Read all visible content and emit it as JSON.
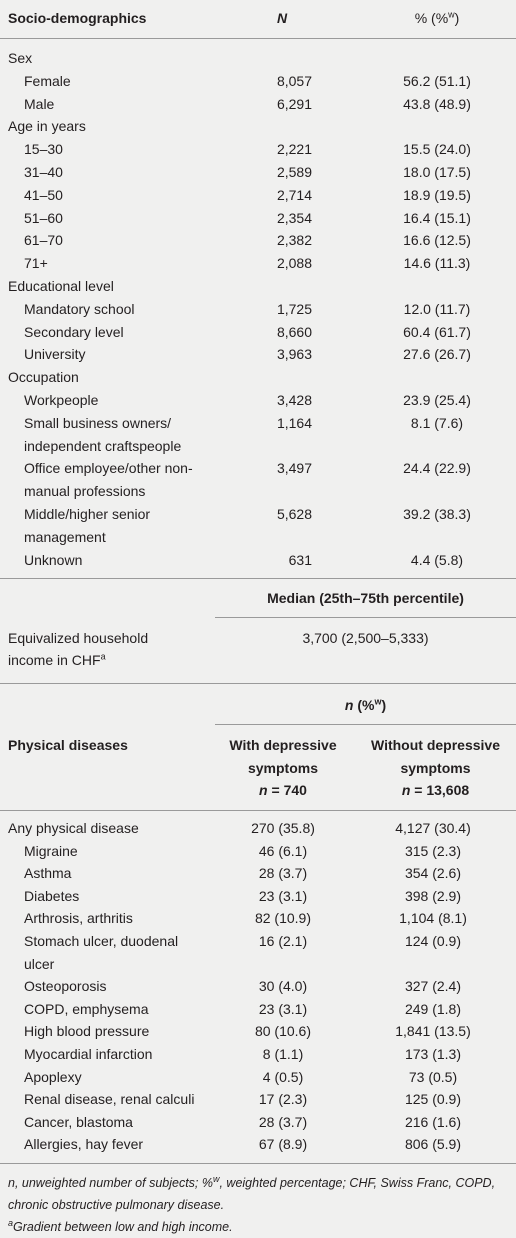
{
  "socio": {
    "header": {
      "label": "Socio-demographics",
      "n": "N",
      "pct": "% (%",
      "pct_sup": "w",
      "pct_end": ")"
    },
    "rows": [
      {
        "label": "Sex"
      },
      {
        "label": "Female",
        "n": "8,057",
        "pct": "56.2 (51.1)"
      },
      {
        "label": "Male",
        "n": "6,291",
        "pct": "43.8 (48.9)"
      },
      {
        "label": "Age in years"
      },
      {
        "label": "15–30",
        "n": "2,221",
        "pct": "15.5 (24.0)"
      },
      {
        "label": "31–40",
        "n": "2,589",
        "pct": "18.0 (17.5)"
      },
      {
        "label": "41–50",
        "n": "2,714",
        "pct": "18.9 (19.5)"
      },
      {
        "label": "51–60",
        "n": "2,354",
        "pct": "16.4 (15.1)"
      },
      {
        "label": "61–70",
        "n": "2,382",
        "pct": "16.6 (12.5)"
      },
      {
        "label": "71+",
        "n": "2,088",
        "pct": "14.6 (11.3)"
      },
      {
        "label": "Educational level"
      },
      {
        "label": "Mandatory school",
        "n": "1,725",
        "pct": "12.0 (11.7)"
      },
      {
        "label": "Secondary level",
        "n": "8,660",
        "pct": "60.4 (61.7)"
      },
      {
        "label": "University",
        "n": "3,963",
        "pct": "27.6 (26.7)"
      },
      {
        "label": "Occupation"
      },
      {
        "label": "Workpeople",
        "n": "3,428",
        "pct": "23.9 (25.4)"
      },
      {
        "label": "Small business owners/ independent craftspeople",
        "n": "1,164",
        "pct": "8.1 (7.6)"
      },
      {
        "label": "Office employee/other non-manual professions",
        "n": "3,497",
        "pct": "24.4 (22.9)"
      },
      {
        "label": "Middle/higher senior management",
        "n": "5,628",
        "pct": "39.2 (38.3)"
      },
      {
        "label": "Unknown",
        "n": "631",
        "pct": "4.4 (5.8)"
      }
    ]
  },
  "income": {
    "header": "Median (25th–75th percentile)",
    "label": "Equivalized household income in CHF",
    "label_sup": "a",
    "value": "3,700 (2,500–5,333)"
  },
  "diseases": {
    "group_header": {
      "n": "n",
      "pct": " (%",
      "pct_sup": "w",
      "pct_end": ")"
    },
    "header": {
      "label": "Physical diseases",
      "col1": {
        "title": "With depressive symptoms",
        "n": "n",
        "count": " = 740"
      },
      "col2": {
        "title": "Without depressive symptoms",
        "n": "n",
        "count": " = 13,608"
      }
    },
    "total": {
      "label": "Any physical disease",
      "with": "270 (35.8)",
      "without": "4,127 (30.4)"
    },
    "items": [
      {
        "label": "Migraine",
        "with": "46 (6.1)",
        "without": "315 (2.3)"
      },
      {
        "label": "Asthma",
        "with": "28 (3.7)",
        "without": "354 (2.6)"
      },
      {
        "label": "Diabetes",
        "with": "23 (3.1)",
        "without": "398 (2.9)"
      },
      {
        "label": "Arthrosis, arthritis",
        "with": "82 (10.9)",
        "without": "1,104 (8.1)"
      },
      {
        "label": "Stomach ulcer, duodenal ulcer",
        "with": "16 (2.1)",
        "without": "124 (0.9)"
      },
      {
        "label": "Osteoporosis",
        "with": "30 (4.0)",
        "without": "327 (2.4)"
      },
      {
        "label": "COPD, emphysema",
        "with": "23 (3.1)",
        "without": "249 (1.8)"
      },
      {
        "label": "High blood pressure",
        "with": "80 (10.6)",
        "without": "1,841 (13.5)"
      },
      {
        "label": "Myocardial infarction",
        "with": "8 (1.1)",
        "without": "173 (1.3)"
      },
      {
        "label": "Apoplexy",
        "with": "4 (0.5)",
        "without": "73 (0.5)"
      },
      {
        "label": "Renal disease, renal calculi",
        "with": "17 (2.3)",
        "without": "125 (0.9)"
      },
      {
        "label": "Cancer, blastoma",
        "with": "28 (3.7)",
        "without": "216 (1.6)"
      },
      {
        "label": "Allergies, hay fever",
        "with": "67 (8.9)",
        "without": "806 (5.9)"
      }
    ]
  },
  "footnotes": {
    "abbrev": {
      "n": "n",
      "part1": ", unweighted number of subjects; %",
      "sup": "w",
      "part2": ", weighted percentage; CHF, Swiss Franc, COPD, chronic obstructive pulmonary disease."
    },
    "gradient": {
      "sup": "a",
      "text": "Gradient between low and high income."
    }
  }
}
